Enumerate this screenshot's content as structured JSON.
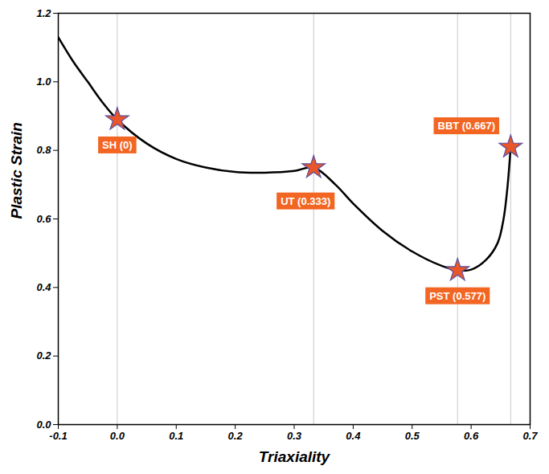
{
  "chart_data": {
    "type": "line",
    "x_label": "Triaxiality",
    "y_label": "Plastic Strain",
    "x": [
      -0.1,
      -0.075,
      -0.05,
      -0.025,
      0,
      0.05,
      0.1,
      0.15,
      0.2,
      0.25,
      0.3,
      0.333,
      0.37,
      0.4,
      0.45,
      0.5,
      0.55,
      0.577,
      0.6,
      0.625,
      0.645,
      0.655,
      0.662,
      0.667
    ],
    "values": [
      1.13,
      1.06,
      1.0,
      0.94,
      0.89,
      0.82,
      0.775,
      0.75,
      0.737,
      0.735,
      0.74,
      0.75,
      0.7,
      0.645,
      0.565,
      0.505,
      0.463,
      0.45,
      0.452,
      0.48,
      0.53,
      0.6,
      0.7,
      0.81
    ],
    "color": "#000000",
    "line_style": "solid",
    "annotations": {
      "labels": [
        "SH (0)",
        "UT (0.333)",
        "PST (0.577)",
        "BBT (0.667)"
      ],
      "x": [
        0,
        0.333,
        0.577,
        0.667
      ],
      "y": [
        0.89,
        0.75,
        0.45,
        0.81
      ],
      "marker": "star",
      "color": "#e8562a"
    },
    "xlim": [
      -0.1,
      0.7
    ],
    "ylim": [
      0,
      1.2
    ],
    "xticks": [
      -0.1,
      {
        "value": 0,
        "label": "0.0"
      },
      0.1,
      0.2,
      0.3,
      0.4,
      0.5,
      0.6,
      0.7
    ],
    "yticks": [
      {
        "value": 0,
        "label": "0.0"
      },
      0.2,
      0.4,
      0.6,
      0.8,
      {
        "value": 1,
        "label": "1.0"
      },
      1.2
    ],
    "grid": false
  }
}
